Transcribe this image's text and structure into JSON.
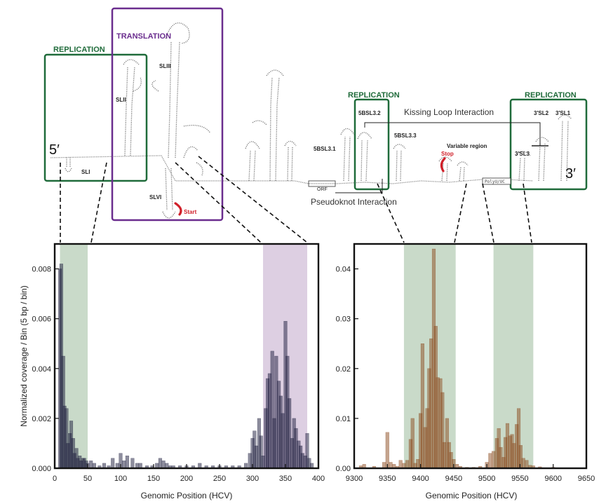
{
  "diagram": {
    "boxes": {
      "replication_left": "REPLICATION",
      "translation": "TRANSLATION",
      "replication_mid": "REPLICATION",
      "replication_right": "REPLICATION"
    },
    "labels": {
      "five_prime": "5′",
      "three_prime": "3′",
      "sli": "SLI",
      "slii": "SLII",
      "sliii": "SLIII",
      "slvi": "SLVI",
      "start": "Start",
      "stop": "Stop",
      "variable_region": "Variable region",
      "sbsl31": "5BSL3.1",
      "sbsl32": "5BSL3.2",
      "sbsl33": "5BSL3.3",
      "sl1_3": "3′SL1",
      "sl2_3": "3′SL2",
      "sl3_3": "3′SL3",
      "orf": "ORF",
      "polyu": "PolyU/UC",
      "kissing_loop": "Kissing Loop Interaction",
      "pseudoknot": "Pseudoknot Interaction"
    },
    "colors": {
      "replication": "#1f6b3a",
      "translation": "#6a2d8e",
      "start_stop": "#d0202a"
    }
  },
  "chart_data": [
    {
      "type": "bar",
      "xlabel": "Genomic Position (HCV)",
      "ylabel": "Normalized coverage / Bin (5 bp / bin)",
      "xlim": [
        0,
        400
      ],
      "ylim": [
        0,
        0.009
      ],
      "xticks": [
        0,
        50,
        100,
        150,
        200,
        250,
        300,
        350,
        400
      ],
      "yticks": [
        0.0,
        0.002,
        0.004,
        0.006,
        0.008
      ],
      "bin_width": 5,
      "bar_color": "#1c1c3c",
      "shaded_regions": [
        {
          "from": 8,
          "to": 50,
          "color": "#c9dac9"
        },
        {
          "from": 316,
          "to": 383,
          "color": "#ddcfe2"
        }
      ],
      "x": [
        8,
        10,
        13,
        15,
        18,
        20,
        23,
        25,
        28,
        30,
        33,
        35,
        38,
        40,
        43,
        45,
        48,
        50,
        55,
        60,
        68,
        75,
        82,
        88,
        95,
        100,
        105,
        110,
        118,
        125,
        130,
        140,
        148,
        155,
        160,
        165,
        170,
        175,
        180,
        190,
        200,
        210,
        220,
        230,
        240,
        250,
        260,
        270,
        280,
        290,
        296,
        300,
        303,
        306,
        310,
        313,
        316,
        320,
        323,
        326,
        330,
        333,
        336,
        340,
        343,
        346,
        350,
        353,
        356,
        360,
        363,
        366,
        370,
        373,
        376,
        380,
        383,
        386,
        390
      ],
      "values": [
        0.008,
        0.0082,
        0.0045,
        0.0025,
        0.0024,
        0.001,
        0.0014,
        0.0019,
        0.0012,
        0.0006,
        0.0008,
        0.0004,
        0.0005,
        0.0003,
        0.0004,
        0.0004,
        0.0003,
        0.0002,
        0.0003,
        0.0002,
        0.0001,
        0.0002,
        0.0001,
        0.0004,
        0.0002,
        0.0006,
        0.0003,
        0.0005,
        0.0004,
        0.0002,
        0.0002,
        0.0001,
        0.0001,
        0.0002,
        0.0004,
        0.0003,
        0.0002,
        0.0001,
        0.0001,
        0.0001,
        0.0001,
        0.0001,
        0.0002,
        0.0001,
        0.0001,
        0.0001,
        0.0001,
        0.0001,
        0.0001,
        0.0002,
        0.0006,
        0.0012,
        0.0015,
        0.0009,
        0.002,
        0.0013,
        0.0005,
        0.0024,
        0.0036,
        0.0038,
        0.0047,
        0.002,
        0.0045,
        0.0035,
        0.0029,
        0.0022,
        0.0059,
        0.0045,
        0.0028,
        0.0012,
        0.002,
        0.0016,
        0.0011,
        0.0009,
        0.0006,
        0.0005,
        0.0014,
        0.0004,
        0.0002
      ]
    },
    {
      "type": "bar",
      "xlabel": "Genomic Position (HCV)",
      "ylabel": "",
      "xlim": [
        9300,
        9650
      ],
      "ylim": [
        0,
        0.045
      ],
      "xticks": [
        9300,
        9350,
        9400,
        9450,
        9500,
        9550,
        9600,
        9650
      ],
      "yticks": [
        0.0,
        0.01,
        0.02,
        0.03,
        0.04
      ],
      "bin_width": 5,
      "bar_color": "#8c4a1e",
      "shaded_regions": [
        {
          "from": 9375,
          "to": 9453,
          "color": "#c9dac9"
        },
        {
          "from": 9510,
          "to": 9570,
          "color": "#c9dac9"
        }
      ],
      "x": [
        9310,
        9315,
        9330,
        9345,
        9350,
        9355,
        9360,
        9365,
        9370,
        9375,
        9380,
        9385,
        9388,
        9392,
        9396,
        9400,
        9403,
        9407,
        9410,
        9413,
        9416,
        9420,
        9423,
        9426,
        9430,
        9433,
        9436,
        9440,
        9443,
        9446,
        9450,
        9455,
        9460,
        9470,
        9480,
        9490,
        9500,
        9505,
        9510,
        9515,
        9518,
        9521,
        9525,
        9528,
        9531,
        9535,
        9538,
        9541,
        9545,
        9548,
        9551,
        9555,
        9560,
        9565,
        9570,
        9580,
        9600,
        9620
      ],
      "values": [
        0.0005,
        0.0008,
        0.0004,
        0.0012,
        0.0072,
        0.0012,
        0.0008,
        0.0004,
        0.0016,
        0.001,
        0.0016,
        0.0058,
        0.01,
        0.001,
        0.0018,
        0.011,
        0.025,
        0.0082,
        0.012,
        0.02,
        0.026,
        0.044,
        0.0285,
        0.0182,
        0.018,
        0.0152,
        0.0052,
        0.01,
        0.0052,
        0.0032,
        0.0018,
        0.0008,
        0.0004,
        0.0002,
        0.0002,
        0.0004,
        0.0012,
        0.003,
        0.0034,
        0.006,
        0.008,
        0.0042,
        0.0022,
        0.0062,
        0.009,
        0.0065,
        0.0068,
        0.005,
        0.0088,
        0.012,
        0.0046,
        0.002,
        0.0016,
        0.0006,
        0.0005,
        0.0003,
        0.0002,
        0.0001
      ]
    }
  ]
}
